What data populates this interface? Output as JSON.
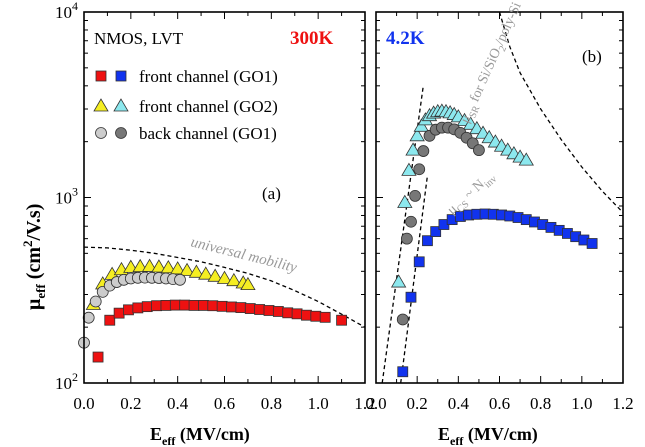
{
  "chart_data": [
    {
      "type": "scatter",
      "panel_label": "(a)",
      "temperature": "300K",
      "device": "NMOS, LVT",
      "xlabel_main": "E",
      "xlabel_sub": "eff",
      "xlabel_unit": " (MV/cm)",
      "ylabel_main": "μ",
      "ylabel_sub": "eff",
      "ylabel_unit": " (cm",
      "ylabel_sup": "2",
      "ylabel_unit2": "/V.s)",
      "xlim": [
        0,
        1.2
      ],
      "ylim": [
        100,
        10000
      ],
      "yscale": "log",
      "x_ticks": [
        "0.0",
        "0.2",
        "0.4",
        "0.6",
        "0.8",
        "1.0",
        "1.2"
      ],
      "y_ticks": [
        {
          "base": "10",
          "exp": "2"
        },
        {
          "base": "10",
          "exp": "3"
        },
        {
          "base": "10",
          "exp": "4"
        }
      ],
      "legend": [
        {
          "label": "front channel (GO1)",
          "marker": "square",
          "colors": [
            "#ee1111",
            "#1133ee"
          ]
        },
        {
          "label": "front channel (GO2)",
          "marker": "triangle",
          "colors": [
            "#f5ee22",
            "#8ce8ee"
          ]
        },
        {
          "label": "back channel (GO1)",
          "marker": "circle",
          "colors": [
            "#cccccc",
            "#777777"
          ]
        }
      ],
      "annotations": [
        {
          "text": "universal mobility"
        }
      ],
      "series": [
        {
          "marker": "square",
          "color": "#ee1111",
          "x": [
            0.06,
            0.11,
            0.15,
            0.19,
            0.23,
            0.27,
            0.31,
            0.35,
            0.39,
            0.43,
            0.47,
            0.51,
            0.55,
            0.59,
            0.63,
            0.67,
            0.71,
            0.75,
            0.79,
            0.83,
            0.87,
            0.91,
            0.95,
            0.99,
            1.03,
            1.1
          ],
          "y": [
            138,
            218,
            238,
            248,
            254,
            258,
            261,
            262,
            263,
            263,
            262,
            262,
            261,
            259,
            257,
            255,
            252,
            249,
            246,
            243,
            239,
            236,
            232,
            229,
            226,
            218
          ]
        },
        {
          "marker": "triangle",
          "color": "#f5ee22",
          "x": [
            0.04,
            0.08,
            0.12,
            0.16,
            0.2,
            0.24,
            0.28,
            0.32,
            0.36,
            0.4,
            0.44,
            0.48,
            0.52,
            0.56,
            0.6,
            0.64,
            0.68,
            0.7
          ],
          "y": [
            265,
            342,
            385,
            408,
            420,
            424,
            425,
            422,
            418,
            412,
            404,
            395,
            386,
            376,
            366,
            356,
            346,
            339
          ]
        },
        {
          "marker": "circle",
          "color": "#cccccc",
          "x": [
            0.0,
            0.02,
            0.05,
            0.08,
            0.11,
            0.14,
            0.17,
            0.2,
            0.23,
            0.26,
            0.29,
            0.32,
            0.35,
            0.38,
            0.41
          ],
          "y": [
            165,
            225,
            275,
            310,
            335,
            350,
            360,
            366,
            369,
            370,
            369,
            368,
            366,
            363,
            360
          ]
        },
        {
          "line": "dashed",
          "name_ref": "universal mobility",
          "x": [
            0.0,
            0.1,
            0.2,
            0.3,
            0.4,
            0.5,
            0.6,
            0.7,
            0.8,
            0.9,
            1.0,
            1.1,
            1.2
          ],
          "y": [
            540,
            535,
            520,
            500,
            475,
            450,
            420,
            390,
            355,
            315,
            275,
            235,
            200
          ]
        }
      ]
    },
    {
      "type": "scatter",
      "panel_label": "(b)",
      "temperature": "4.2K",
      "xlabel_main": "E",
      "xlabel_sub": "eff",
      "xlabel_unit": " (MV/cm)",
      "xlim": [
        0,
        1.2
      ],
      "ylim": [
        100,
        10000
      ],
      "yscale": "log",
      "x_ticks": [
        "0.0",
        "0.2",
        "0.4",
        "0.6",
        "0.8",
        "1.0",
        "1.2"
      ],
      "annotations": [
        {
          "mu": "μ",
          "sub": "SR",
          "rest": " for Si/SiO",
          "sub2": "2",
          "rest2": "/poly-Si"
        },
        {
          "mu": "μ",
          "sub": "CS",
          "rest": " ~ N",
          "sub2": "inv"
        }
      ],
      "series": [
        {
          "marker": "square",
          "color": "#1133ee",
          "x": [
            0.13,
            0.17,
            0.21,
            0.25,
            0.29,
            0.33,
            0.37,
            0.41,
            0.45,
            0.49,
            0.53,
            0.57,
            0.61,
            0.65,
            0.69,
            0.73,
            0.77,
            0.81,
            0.85,
            0.89,
            0.93,
            0.97,
            1.01,
            1.05
          ],
          "y": [
            115,
            290,
            450,
            585,
            655,
            715,
            760,
            790,
            805,
            812,
            815,
            812,
            805,
            795,
            780,
            760,
            738,
            715,
            690,
            665,
            640,
            615,
            590,
            565
          ]
        },
        {
          "marker": "triangle",
          "color": "#8ce8ee",
          "x": [
            0.11,
            0.14,
            0.16,
            0.18,
            0.2,
            0.22,
            0.24,
            0.26,
            0.28,
            0.3,
            0.32,
            0.34,
            0.36,
            0.38,
            0.4,
            0.43,
            0.46,
            0.49,
            0.52,
            0.55,
            0.58,
            0.61,
            0.64,
            0.67,
            0.7,
            0.73
          ],
          "y": [
            350,
            940,
            1400,
            1800,
            2150,
            2420,
            2620,
            2760,
            2850,
            2900,
            2920,
            2900,
            2860,
            2800,
            2720,
            2600,
            2480,
            2350,
            2220,
            2100,
            1990,
            1890,
            1800,
            1720,
            1650,
            1590
          ]
        },
        {
          "marker": "circle",
          "color": "#777777",
          "x": [
            0.13,
            0.15,
            0.17,
            0.19,
            0.21,
            0.23,
            0.26,
            0.29,
            0.32,
            0.35,
            0.38,
            0.41,
            0.44,
            0.47,
            0.5
          ],
          "y": [
            220,
            600,
            740,
            1020,
            1420,
            1780,
            2150,
            2320,
            2380,
            2380,
            2330,
            2230,
            2100,
            1960,
            1800
          ]
        },
        {
          "line": "dashed",
          "name_ref": "SR",
          "x": [
            0.6,
            0.65,
            0.7,
            0.8,
            0.9,
            1.0,
            1.1,
            1.2
          ],
          "y": [
            10000,
            6500,
            4700,
            3000,
            2050,
            1460,
            1080,
            830
          ]
        },
        {
          "line": "dashed",
          "name_ref": "CS-left",
          "x": [
            0.03,
            0.23
          ],
          "y": [
            100,
            4000
          ]
        },
        {
          "line": "dashed",
          "name_ref": "CS-right",
          "x": [
            0.12,
            0.25
          ],
          "y": [
            100,
            1320
          ]
        }
      ]
    }
  ]
}
